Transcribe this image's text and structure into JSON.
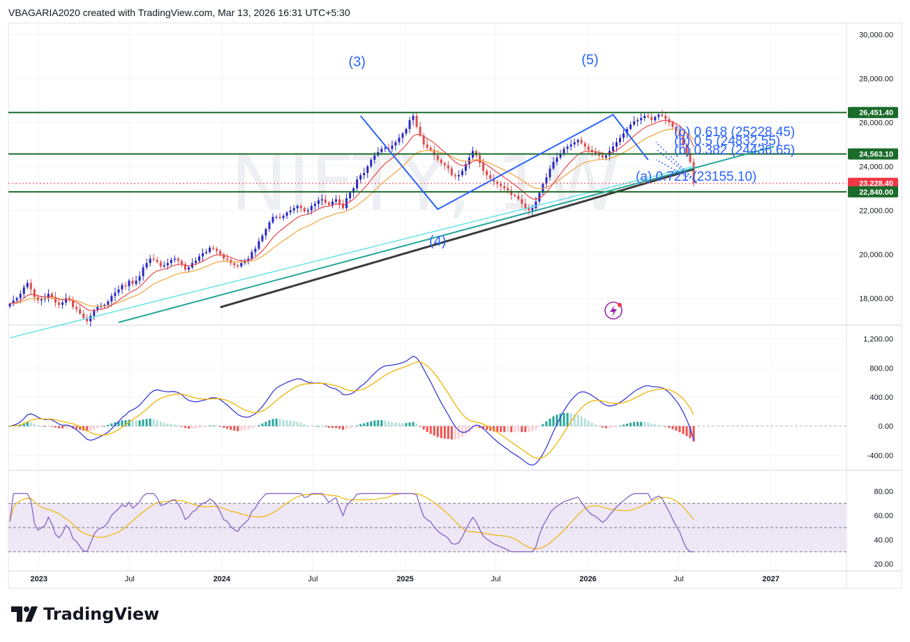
{
  "header": {
    "text": "VBAGARIA2020 created with TradingView.com, Mar 13, 2026 16:31 UTC+5:30"
  },
  "watermark": {
    "text": "NIFTY, 1W"
  },
  "logo": {
    "text": "TradingView",
    "icon": "tradingview-logo-icon"
  },
  "colors": {
    "up": "#2727c4",
    "down": "#e04a4a",
    "ema_red": "#e8484a",
    "ema_orange": "#f2a33a",
    "ma_cyan": "#5ce0e6",
    "ma_200": "#3a3a3a",
    "level_line": "#1b6b2a",
    "trendline": "#26a69a",
    "wave": "#2962ff",
    "macd": "#3a3ad8",
    "signal": "#f0b400",
    "rsi": "#7e57c2",
    "rsi_ma": "#f0b400",
    "rsi_band": "#ede7f6"
  },
  "price_axis": {
    "ticks": [
      "30,000.00",
      "28,000.00",
      "26,000.00",
      "24,000.00",
      "22,000.00",
      "20,000.00",
      "18,000.00"
    ],
    "tick_values": [
      30000,
      28000,
      26000,
      24000,
      22000,
      20000,
      18000
    ]
  },
  "level_badges": [
    {
      "label": "26,451.40",
      "value": 26451.4,
      "color": "#1b6b2a"
    },
    {
      "label": "24,563.10",
      "value": 24563.1,
      "color": "#1b6b2a"
    },
    {
      "label": "23,228.40",
      "value": 23228.4,
      "color": "#f23645"
    },
    {
      "label": "22,840.00",
      "value": 22840.0,
      "color": "#1b6b2a"
    }
  ],
  "wave_labels": [
    {
      "text": "(3)",
      "date": "2024-09-27"
    },
    {
      "text": "(4)",
      "date": "2025-03-07"
    },
    {
      "text": "(5)",
      "date": "2026-01-05"
    }
  ],
  "fib_labels": [
    {
      "text": "(b) 0.618 (25228.45)",
      "value": 25228.45
    },
    {
      "text": "(b) 0.5 (24832.55)",
      "value": 24832.55
    },
    {
      "text": "(b) 0.382 (24436.65)",
      "value": 24436.65
    },
    {
      "text": "(a) 0.721 (23155.10)",
      "value": 23155.1
    }
  ],
  "macd_axis": {
    "ticks": [
      "1,200.00",
      "800.00",
      "400.00",
      "0.00",
      "-400.00"
    ],
    "tick_values": [
      1200,
      800,
      400,
      0,
      -400
    ]
  },
  "rsi_axis": {
    "ticks": [
      "80.00",
      "60.00",
      "40.00",
      "20.00"
    ],
    "tick_values": [
      80,
      60,
      40,
      20
    ]
  },
  "time_axis": {
    "labels": [
      {
        "text": "2023",
        "year": true,
        "date": "2023-01-01"
      },
      {
        "text": "Jul",
        "year": false,
        "date": "2023-07-01"
      },
      {
        "text": "2024",
        "year": true,
        "date": "2024-01-01"
      },
      {
        "text": "Jul",
        "year": false,
        "date": "2024-07-01"
      },
      {
        "text": "2025",
        "year": true,
        "date": "2025-01-01"
      },
      {
        "text": "Jul",
        "year": false,
        "date": "2025-07-01"
      },
      {
        "text": "2026",
        "year": true,
        "date": "2026-01-01"
      },
      {
        "text": "Jul",
        "year": false,
        "date": "2026-07-01"
      },
      {
        "text": "2027",
        "year": true,
        "date": "2027-01-01"
      }
    ]
  },
  "chart_data": {
    "type": "candlestick",
    "title": "",
    "symbol": "NIFTY",
    "interval": "1W",
    "xlim": [
      "2022-11-01",
      "2027-06-01"
    ],
    "ylim": [
      16900,
      30300
    ],
    "grid": true,
    "closes": [
      17750,
      17900,
      18000,
      18200,
      18500,
      18700,
      18400,
      18050,
      17900,
      17950,
      18000,
      18200,
      18050,
      17800,
      17700,
      17800,
      18000,
      17900,
      17600,
      17500,
      17300,
      17100,
      16950,
      17200,
      17450,
      17600,
      17650,
      17700,
      17850,
      18100,
      18250,
      18400,
      18600,
      18550,
      18800,
      18650,
      18800,
      19000,
      19400,
      19600,
      19800,
      19750,
      19650,
      19450,
      19500,
      19600,
      19750,
      19800,
      19700,
      19550,
      19300,
      19400,
      19600,
      19700,
      19900,
      20050,
      20100,
      20300,
      20250,
      20150,
      20000,
      19800,
      19750,
      19600,
      19500,
      19450,
      19600,
      19700,
      19800,
      20100,
      20250,
      20600,
      20850,
      21150,
      21450,
      21700,
      21700,
      21650,
      21750,
      21900,
      22000,
      22100,
      22200,
      22100,
      21950,
      22000,
      22200,
      22300,
      22450,
      22500,
      22350,
      22250,
      22400,
      22500,
      22300,
      22100,
      22550,
      22800,
      23000,
      23400,
      23600,
      23700,
      24000,
      24300,
      24500,
      24650,
      24800,
      24850,
      24800,
      24950,
      25100,
      25300,
      25500,
      25700,
      26100,
      26300,
      25800,
      25400,
      25000,
      24850,
      24750,
      24500,
      24300,
      24150,
      24050,
      23900,
      23600,
      23550,
      23600,
      23800,
      24100,
      24400,
      24700,
      24500,
      24150,
      23800,
      23600,
      23450,
      23300,
      23200,
      23100,
      23000,
      22900,
      22700,
      22650,
      22500,
      22300,
      22100,
      22000,
      22100,
      22400,
      22800,
      23200,
      23500,
      23900,
      24200,
      24400,
      24600,
      24800,
      24900,
      25000,
      25100,
      25200,
      25050,
      24900,
      24750,
      24650,
      24600,
      24500,
      24400,
      24500,
      24700,
      24900,
      25100,
      25300,
      25500,
      25700,
      25900,
      26050,
      26100,
      26200,
      26300,
      26250,
      26100,
      26250,
      26350,
      26300,
      26150,
      26000,
      25800,
      25600,
      25400,
      25000,
      24600,
      24200,
      23228.4
    ],
    "candles_note": "",
    "series": [],
    "panels": [
      "price",
      "macd",
      "rsi"
    ]
  }
}
